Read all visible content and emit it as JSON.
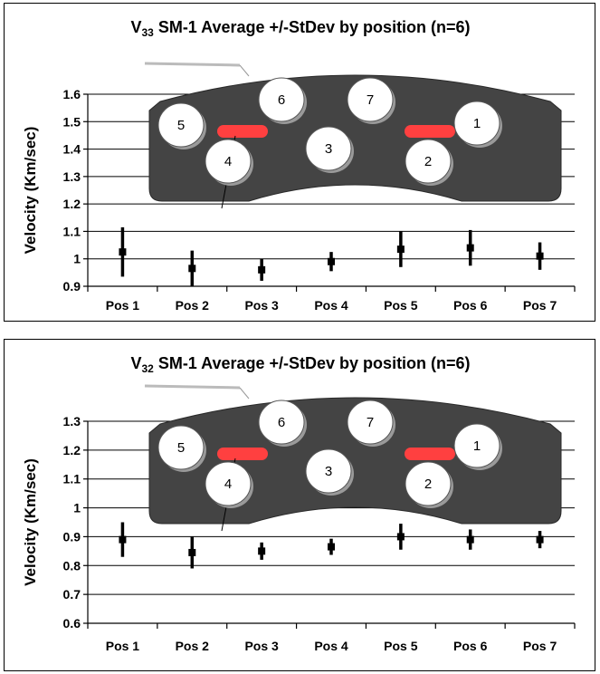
{
  "chart_data": [
    {
      "type": "errorbar",
      "title_parts": {
        "v": "V",
        "sub": "33",
        "rest": " SM-1 Average +/-StDev by position (n=6)"
      },
      "ylabel": "Velocity (Km/sec)",
      "categories": [
        "Pos 1",
        "Pos 2",
        "Pos 3",
        "Pos 4",
        "Pos 5",
        "Pos 6",
        "Pos 7"
      ],
      "ylim": [
        0.9,
        1.6
      ],
      "yticks": [
        "0.9",
        "1",
        "1.1",
        "1.2",
        "1.3",
        "1.4",
        "1.5",
        "1.6"
      ],
      "series": [
        {
          "mean": [
            1.025,
            0.965,
            0.96,
            0.99,
            1.035,
            1.04,
            1.01
          ],
          "stdev": [
            0.09,
            0.065,
            0.04,
            0.035,
            0.065,
            0.065,
            0.05
          ]
        }
      ],
      "grid": true,
      "inset": {
        "numbers": [
          "1",
          "2",
          "3",
          "4",
          "5",
          "6",
          "7"
        ]
      }
    },
    {
      "type": "errorbar",
      "title_parts": {
        "v": "V",
        "sub": "32",
        "rest": " SM-1 Average +/-StDev by position (n=6)"
      },
      "ylabel": "Velocity (Km/sec)",
      "categories": [
        "Pos 1",
        "Pos 2",
        "Pos 3",
        "Pos 4",
        "Pos 5",
        "Pos 6",
        "Pos 7"
      ],
      "ylim": [
        0.6,
        1.3
      ],
      "yticks": [
        "0.6",
        "0.7",
        "0.8",
        "0.9",
        "1",
        "1.1",
        "1.2",
        "1.3"
      ],
      "series": [
        {
          "mean": [
            0.89,
            0.845,
            0.85,
            0.865,
            0.9,
            0.89,
            0.89
          ],
          "stdev": [
            0.06,
            0.055,
            0.03,
            0.028,
            0.045,
            0.035,
            0.03
          ]
        }
      ],
      "grid": true,
      "inset": {
        "numbers": [
          "1",
          "2",
          "3",
          "4",
          "5",
          "6",
          "7"
        ]
      }
    }
  ]
}
